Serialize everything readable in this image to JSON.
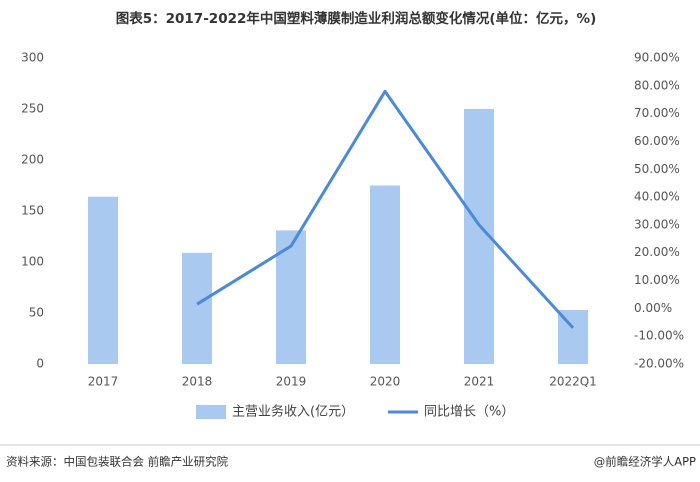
{
  "chart_data": {
    "type": "bar",
    "title": "图表5：2017-2022年中国塑料薄膜制造业利润总额变化情况(单位：亿元，%)",
    "categories": [
      "2017",
      "2018",
      "2019",
      "2020",
      "2021",
      "2022Q1"
    ],
    "series": [
      {
        "name": "主营业务收入(亿元）",
        "color": "#a9c9f0",
        "type": "bar",
        "values": [
          164,
          109,
          131,
          175,
          250,
          53
        ]
      },
      {
        "name": "同比增长（%）",
        "color": "#4a8ad8",
        "type": "line",
        "axis": "y2",
        "values": [
          null,
          1.5,
          22.4,
          78,
          30,
          -7
        ]
      }
    ],
    "ylim": [
      0,
      300
    ],
    "yticks": [
      0,
      50,
      100,
      150,
      200,
      250,
      300
    ],
    "y2lim": [
      -20,
      90
    ],
    "y2ticks": [
      {
        "value": -20,
        "label": "-20.00%"
      },
      {
        "value": -10,
        "label": "-10.00%"
      },
      {
        "value": 0,
        "label": "0.00%"
      },
      {
        "value": 10,
        "label": "10.00%"
      },
      {
        "value": 20,
        "label": "20.00%"
      },
      {
        "value": 30,
        "label": "30.00%"
      },
      {
        "value": 40,
        "label": "40.00%"
      },
      {
        "value": 50,
        "label": "50.00%"
      },
      {
        "value": 60,
        "label": "60.00%"
      },
      {
        "value": 70,
        "label": "70.00%"
      },
      {
        "value": 80,
        "label": "80.00%"
      },
      {
        "value": 90,
        "label": "90.00%"
      }
    ],
    "grid": false,
    "source": "资料来源：中国包装联合会 前瞻产业研究院",
    "credit": "@前瞻经济学人APP"
  }
}
